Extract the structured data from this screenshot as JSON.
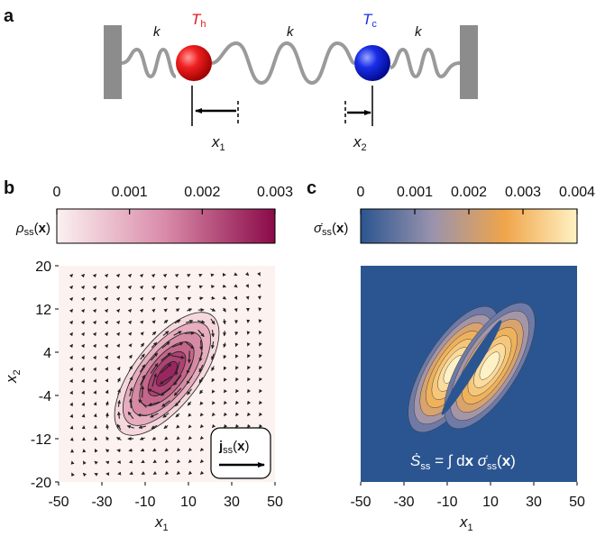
{
  "panel_a": {
    "label": "a",
    "spring_constants": [
      "k",
      "k",
      "k"
    ],
    "hot": {
      "symbol": "T",
      "sub": "h"
    },
    "cold": {
      "symbol": "T",
      "sub": "c"
    },
    "x1": {
      "symbol": "x",
      "sub": "1"
    },
    "x2": {
      "symbol": "x",
      "sub": "2"
    }
  },
  "panel_b": {
    "label": "b",
    "colorbar": {
      "symbol": "ρ",
      "sub": "ss",
      "open": "(",
      "arg": "x",
      "close": ")",
      "lim": [
        0,
        0.003
      ],
      "ticks": [
        0,
        0.001,
        0.002,
        0.003
      ],
      "colors": [
        "#fbf1f1",
        "#d98aa8",
        "#8a0a48"
      ]
    },
    "xlim": [
      -50,
      50
    ],
    "ylim": [
      -20,
      20
    ],
    "xticks": [
      -50,
      -30,
      -10,
      10,
      30,
      50
    ],
    "yticks": [
      -20,
      -12,
      -4,
      4,
      12,
      20
    ],
    "xlabel": {
      "symbol": "x",
      "sub": "1"
    },
    "ylabel": {
      "symbol": "x",
      "sub": "2"
    },
    "legend": {
      "symbol": "j",
      "sub": "ss",
      "open": "(",
      "arg": "x",
      "close": ")"
    }
  },
  "panel_c": {
    "label": "c",
    "colorbar": {
      "symbol": "σ̇",
      "sub": "ss",
      "open": "(",
      "arg": "x",
      "close": ")",
      "lim": [
        0,
        0.004
      ],
      "ticks": [
        0,
        0.001,
        0.002,
        0.003,
        0.004
      ],
      "colors": [
        "#2b5590",
        "#9a93ad",
        "#f0a54a",
        "#fff2c4"
      ]
    },
    "xlim": [
      -50,
      50
    ],
    "xticks": [
      -50,
      -30,
      -10,
      10,
      30,
      50
    ],
    "xlabel": {
      "symbol": "x",
      "sub": "1"
    },
    "equation": {
      "lhs": "Ṡ",
      "lhs_sub": "ss",
      "mid": " = ∫ d",
      "var": "x",
      "sym": " σ̇",
      "sym_sub": "ss",
      "open": "(",
      "arg": "x",
      "close": ")"
    }
  }
}
